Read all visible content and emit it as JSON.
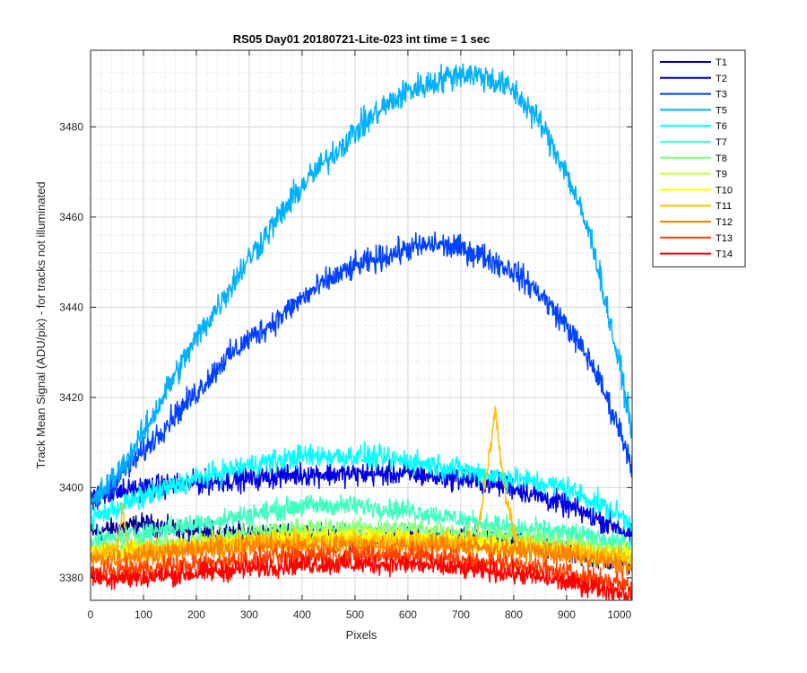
{
  "chart_data": {
    "type": "line",
    "title": "RS05 Day01 20180721-Lite-023 int time = 1 sec",
    "xlabel": "Pixels",
    "ylabel": "Track Mean Signal (ADU/pix) - for tracks not illuminated",
    "xlim": [
      0,
      1024
    ],
    "ylim": [
      3375,
      3497
    ],
    "x_ticks": [
      0,
      100,
      200,
      300,
      400,
      500,
      600,
      700,
      800,
      900,
      1000
    ],
    "y_ticks": [
      3380,
      3400,
      3420,
      3440,
      3460,
      3480
    ],
    "grid": {
      "major": true,
      "minor": true
    },
    "legend_position": "outside-top-right",
    "series": [
      {
        "name": "T1",
        "color": "#00008f",
        "noise": 1.6,
        "points": [
          [
            0,
            3390
          ],
          [
            100,
            3392
          ],
          [
            200,
            3390
          ],
          [
            300,
            3390
          ],
          [
            400,
            3390
          ],
          [
            500,
            3389
          ],
          [
            600,
            3389
          ],
          [
            700,
            3389
          ],
          [
            800,
            3388
          ],
          [
            900,
            3385
          ],
          [
            1024,
            3383
          ]
        ]
      },
      {
        "name": "T2",
        "color": "#0000e0",
        "noise": 1.8,
        "points": [
          [
            0,
            3398
          ],
          [
            50,
            3399
          ],
          [
            100,
            3400
          ],
          [
            200,
            3401
          ],
          [
            300,
            3402
          ],
          [
            400,
            3403
          ],
          [
            500,
            3403
          ],
          [
            600,
            3403
          ],
          [
            700,
            3402
          ],
          [
            800,
            3400
          ],
          [
            900,
            3396
          ],
          [
            1000,
            3391
          ],
          [
            1024,
            3389
          ]
        ]
      },
      {
        "name": "T3",
        "color": "#0040ff",
        "noise": 2.0,
        "points": [
          [
            0,
            3396
          ],
          [
            50,
            3402
          ],
          [
            100,
            3408
          ],
          [
            150,
            3415
          ],
          [
            200,
            3421
          ],
          [
            250,
            3428
          ],
          [
            300,
            3433
          ],
          [
            350,
            3437
          ],
          [
            400,
            3442
          ],
          [
            450,
            3446
          ],
          [
            500,
            3449
          ],
          [
            550,
            3451
          ],
          [
            600,
            3453
          ],
          [
            650,
            3454
          ],
          [
            700,
            3453
          ],
          [
            750,
            3451
          ],
          [
            800,
            3448
          ],
          [
            850,
            3443
          ],
          [
            900,
            3436
          ],
          [
            950,
            3427
          ],
          [
            1000,
            3413
          ],
          [
            1024,
            3405
          ]
        ]
      },
      {
        "name": "T5",
        "color": "#00b0ff",
        "noise": 2.2,
        "points": [
          [
            0,
            3396
          ],
          [
            50,
            3403
          ],
          [
            100,
            3412
          ],
          [
            150,
            3423
          ],
          [
            200,
            3433
          ],
          [
            250,
            3442
          ],
          [
            300,
            3451
          ],
          [
            350,
            3459
          ],
          [
            400,
            3467
          ],
          [
            450,
            3473
          ],
          [
            500,
            3479
          ],
          [
            550,
            3484
          ],
          [
            600,
            3488
          ],
          [
            650,
            3490
          ],
          [
            700,
            3492
          ],
          [
            750,
            3491
          ],
          [
            800,
            3488
          ],
          [
            850,
            3481
          ],
          [
            900,
            3470
          ],
          [
            950,
            3454
          ],
          [
            1000,
            3427
          ],
          [
            1024,
            3413
          ]
        ]
      },
      {
        "name": "T6",
        "color": "#00ffff",
        "noise": 1.8,
        "points": [
          [
            0,
            3393
          ],
          [
            100,
            3398
          ],
          [
            200,
            3402
          ],
          [
            300,
            3405
          ],
          [
            400,
            3407
          ],
          [
            500,
            3407
          ],
          [
            600,
            3406
          ],
          [
            700,
            3404
          ],
          [
            800,
            3402
          ],
          [
            900,
            3400
          ],
          [
            1000,
            3394
          ],
          [
            1024,
            3392
          ]
        ]
      },
      {
        "name": "T7",
        "color": "#40ffbf",
        "noise": 1.6,
        "points": [
          [
            0,
            3388
          ],
          [
            100,
            3390
          ],
          [
            200,
            3392
          ],
          [
            300,
            3394
          ],
          [
            400,
            3396
          ],
          [
            500,
            3396
          ],
          [
            600,
            3395
          ],
          [
            700,
            3393
          ],
          [
            800,
            3391
          ],
          [
            900,
            3390
          ],
          [
            1000,
            3388
          ],
          [
            1024,
            3387
          ]
        ]
      },
      {
        "name": "T8",
        "color": "#80ff80",
        "noise": 1.5,
        "points": [
          [
            0,
            3386
          ],
          [
            100,
            3387
          ],
          [
            200,
            3388
          ],
          [
            300,
            3390
          ],
          [
            400,
            3391
          ],
          [
            500,
            3391
          ],
          [
            600,
            3391
          ],
          [
            700,
            3390
          ],
          [
            800,
            3389
          ],
          [
            900,
            3388
          ],
          [
            1000,
            3386
          ],
          [
            1024,
            3385
          ]
        ]
      },
      {
        "name": "T9",
        "color": "#bfff40",
        "noise": 1.5,
        "points": [
          [
            0,
            3385
          ],
          [
            100,
            3386
          ],
          [
            200,
            3387
          ],
          [
            300,
            3388
          ],
          [
            400,
            3389
          ],
          [
            500,
            3389
          ],
          [
            600,
            3389
          ],
          [
            700,
            3388
          ],
          [
            800,
            3387
          ],
          [
            900,
            3386
          ],
          [
            1000,
            3384
          ],
          [
            1024,
            3384
          ]
        ]
      },
      {
        "name": "T10",
        "color": "#ffff00",
        "noise": 1.5,
        "points": [
          [
            0,
            3386
          ],
          [
            100,
            3386
          ],
          [
            200,
            3387
          ],
          [
            300,
            3388
          ],
          [
            400,
            3389
          ],
          [
            500,
            3389
          ],
          [
            600,
            3389
          ],
          [
            700,
            3388
          ],
          [
            800,
            3387
          ],
          [
            900,
            3386
          ],
          [
            1000,
            3385
          ],
          [
            1024,
            3385
          ]
        ]
      },
      {
        "name": "T11",
        "color": "#ffbf00",
        "noise": 1.5,
        "points": [
          [
            0,
            3385
          ],
          [
            50,
            3387
          ],
          [
            60,
            3395
          ],
          [
            70,
            3387
          ],
          [
            100,
            3386
          ],
          [
            200,
            3387
          ],
          [
            300,
            3388
          ],
          [
            400,
            3388
          ],
          [
            500,
            3388
          ],
          [
            600,
            3388
          ],
          [
            700,
            3388
          ],
          [
            730,
            3388
          ],
          [
            745,
            3400
          ],
          [
            765,
            3417
          ],
          [
            780,
            3402
          ],
          [
            800,
            3390
          ],
          [
            820,
            3387
          ],
          [
            900,
            3386
          ],
          [
            1000,
            3385
          ],
          [
            1024,
            3384
          ]
        ]
      },
      {
        "name": "T12",
        "color": "#ff8000",
        "noise": 1.6,
        "points": [
          [
            0,
            3384
          ],
          [
            100,
            3385
          ],
          [
            200,
            3386
          ],
          [
            300,
            3387
          ],
          [
            400,
            3387
          ],
          [
            500,
            3387
          ],
          [
            600,
            3387
          ],
          [
            700,
            3387
          ],
          [
            800,
            3386
          ],
          [
            900,
            3385
          ],
          [
            1000,
            3383
          ],
          [
            1024,
            3382
          ]
        ]
      },
      {
        "name": "T13",
        "color": "#ff4000",
        "noise": 1.6,
        "points": [
          [
            0,
            3381
          ],
          [
            100,
            3382
          ],
          [
            200,
            3383
          ],
          [
            300,
            3384
          ],
          [
            400,
            3385
          ],
          [
            500,
            3385
          ],
          [
            600,
            3385
          ],
          [
            700,
            3384
          ],
          [
            800,
            3383
          ],
          [
            900,
            3381
          ],
          [
            1000,
            3379
          ],
          [
            1024,
            3378
          ]
        ]
      },
      {
        "name": "T14",
        "color": "#ff0000",
        "noise": 1.6,
        "points": [
          [
            0,
            3380
          ],
          [
            100,
            3380
          ],
          [
            200,
            3381
          ],
          [
            300,
            3382
          ],
          [
            400,
            3383
          ],
          [
            500,
            3383
          ],
          [
            600,
            3383
          ],
          [
            700,
            3382
          ],
          [
            800,
            3381
          ],
          [
            900,
            3379
          ],
          [
            1000,
            3377
          ],
          [
            1024,
            3376
          ]
        ]
      }
    ]
  }
}
